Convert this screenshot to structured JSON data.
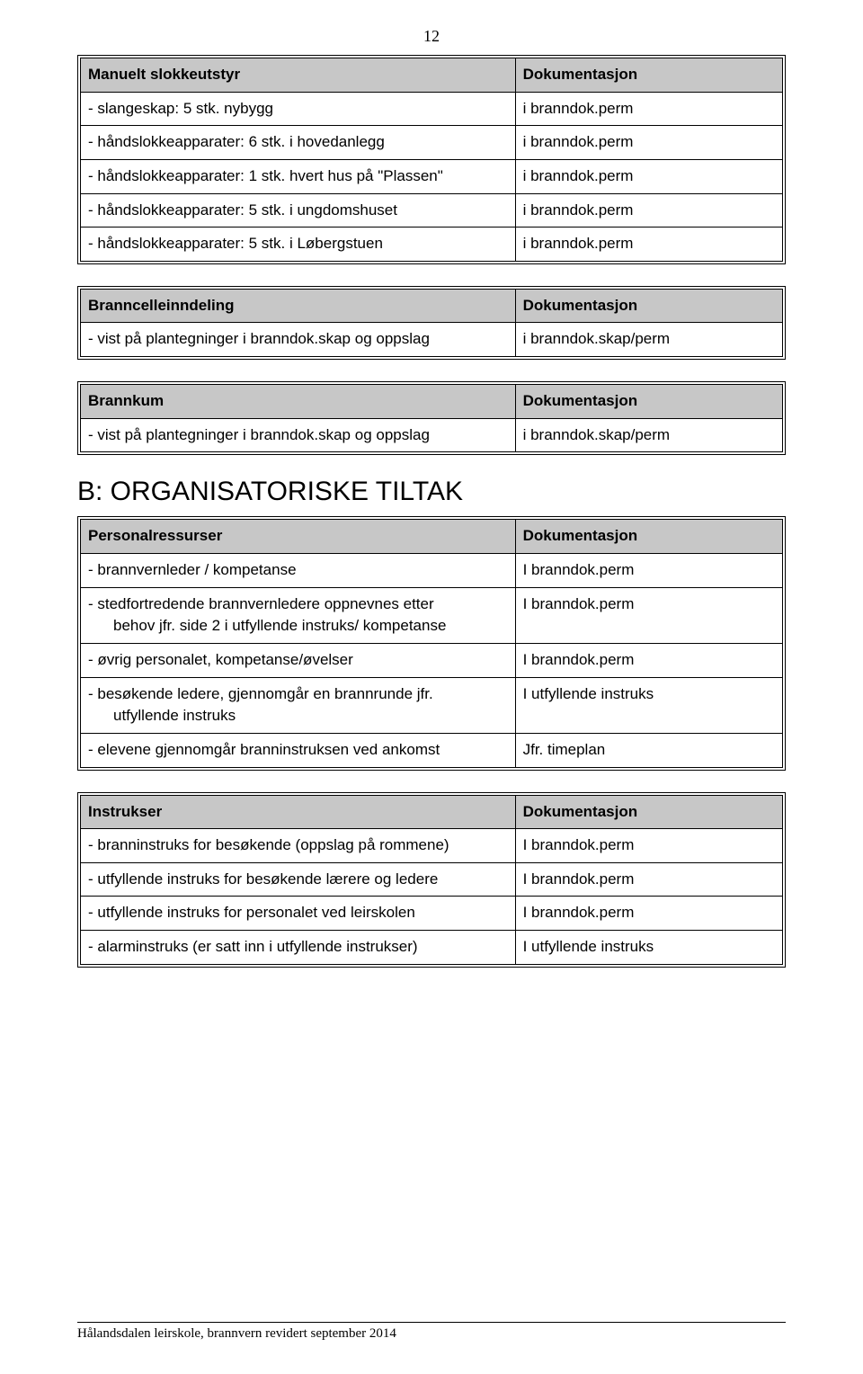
{
  "page_number": "12",
  "tables": {
    "t1": {
      "header": [
        "Manuelt slokkeutstyr",
        "Dokumentasjon"
      ],
      "rows": [
        [
          "- slangeskap: 5 stk. nybygg",
          "i branndok.perm"
        ],
        [
          "- håndslokkeapparater: 6 stk. i hovedanlegg",
          "i branndok.perm"
        ],
        [
          "- håndslokkeapparater: 1 stk. hvert hus på \"Plassen\"",
          "i branndok.perm"
        ],
        [
          "- håndslokkeapparater: 5 stk. i ungdomshuset",
          "i branndok.perm"
        ],
        [
          "- håndslokkeapparater: 5 stk. i Løbergstuen",
          "i branndok.perm"
        ]
      ]
    },
    "t2": {
      "header": [
        "Branncelleinndeling",
        "Dokumentasjon"
      ],
      "rows": [
        [
          "- vist på plantegninger i branndok.skap og oppslag",
          "i branndok.skap/perm"
        ]
      ]
    },
    "t3": {
      "header": [
        "Brannkum",
        "Dokumentasjon"
      ],
      "rows": [
        [
          "- vist på plantegninger i branndok.skap og oppslag",
          "i branndok.skap/perm"
        ]
      ]
    },
    "t4": {
      "header": [
        "Personalressurser",
        "Dokumentasjon"
      ],
      "rows_special": [
        {
          "left": [
            "- brannvernleder / kompetanse"
          ],
          "right": "I branndok.perm"
        },
        {
          "left": [
            "- stedfortredende brannvernledere oppnevnes etter",
            "behov jfr. side 2 i utfyllende instruks/ kompetanse"
          ],
          "right": "I branndok.perm"
        },
        {
          "left": [
            "- øvrig personalet, kompetanse/øvelser"
          ],
          "right": "I branndok.perm"
        },
        {
          "left": [
            "- besøkende ledere, gjennomgår en brannrunde jfr.",
            "utfyllende instruks"
          ],
          "right": "I utfyllende instruks"
        },
        {
          "left": [
            "- elevene gjennomgår branninstruksen ved ankomst"
          ],
          "right": "Jfr. timeplan"
        }
      ]
    },
    "t5": {
      "header": [
        "Instrukser",
        "Dokumentasjon"
      ],
      "rows": [
        [
          "- branninstruks for besøkende (oppslag på rommene)",
          "I branndok.perm"
        ],
        [
          "- utfyllende instruks for besøkende lærere og ledere",
          "I branndok.perm"
        ],
        [
          "- utfyllende instruks for personalet ved leirskolen",
          "I branndok.perm"
        ],
        [
          "- alarminstruks (er satt inn i utfyllende instrukser)",
          "I utfyllende instruks"
        ]
      ]
    }
  },
  "section_heading": "B: ORGANISATORISKE TILTAK",
  "footer": "Hålandsdalen leirskole, brannvern revidert september 2014"
}
